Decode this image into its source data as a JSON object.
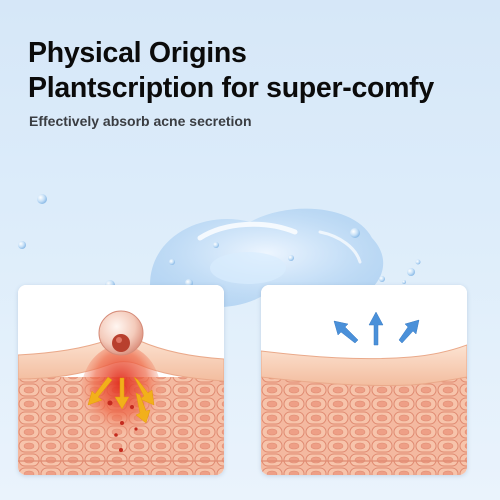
{
  "headline": {
    "line1": "Physical Origins",
    "line2": "Plantscription for super-comfy"
  },
  "subheadline": "Effectively absorb acne secretion",
  "panels": [
    {
      "name": "before",
      "arrow_direction": "down-outward",
      "arrow_color": "#f2b01a"
    },
    {
      "name": "after",
      "arrow_direction": "up-outward",
      "arrow_color": "#4a90d9"
    }
  ],
  "colors": {
    "background": "#dcecfa",
    "skin_surface": "#f6cdb0",
    "skin_cells": "#f2a98e",
    "cell_border": "#e07f68",
    "text": "#0b0b0b"
  }
}
